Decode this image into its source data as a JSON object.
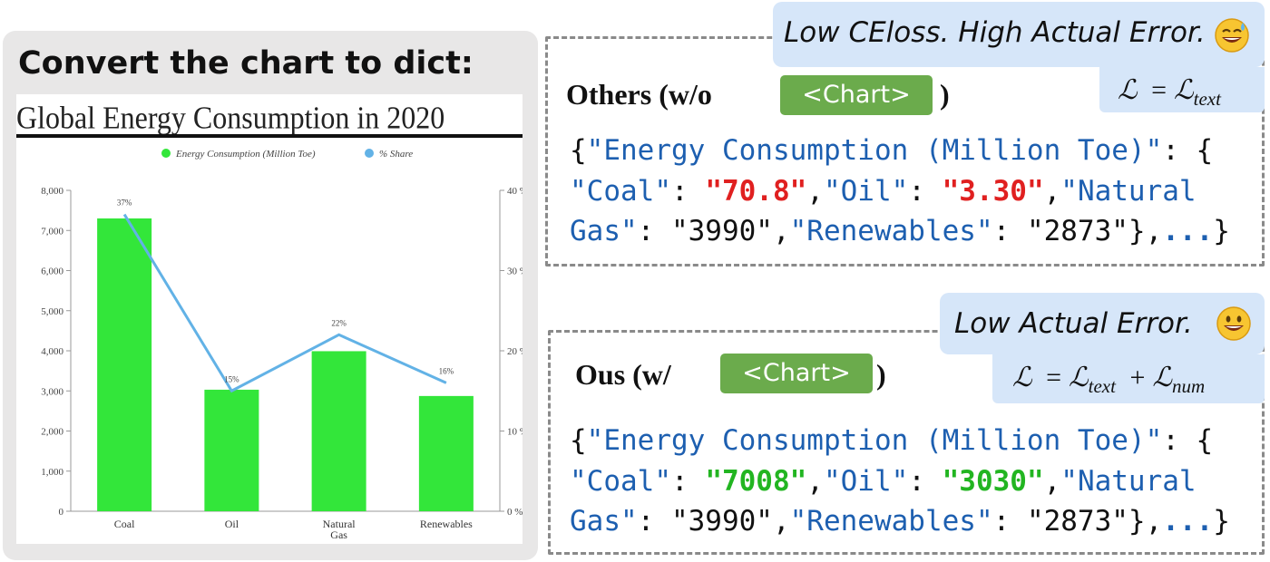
{
  "left": {
    "heading": "Convert the chart to dict:"
  },
  "chart_data": {
    "type": "bar",
    "title": "Global Energy Consumption in 2020",
    "categories": [
      "Coal",
      "Oil",
      "Natural Gas",
      "Renewables"
    ],
    "series": [
      {
        "name": "Energy Consumption (Million Toe)",
        "type": "bar",
        "axis": "left",
        "values": [
          7300,
          3030,
          3990,
          2873
        ],
        "color": "#33e63a"
      },
      {
        "name": "% Share",
        "type": "line",
        "axis": "right",
        "values": [
          37,
          15,
          22,
          16
        ],
        "color": "#62b2e6",
        "labels": [
          "37%",
          "15%",
          "22%",
          "16%"
        ]
      }
    ],
    "y_left": {
      "ylim": [
        0,
        8000
      ],
      "ticks": [
        "0",
        "1,000",
        "2,000",
        "3,000",
        "4,000",
        "5,000",
        "6,000",
        "7,000",
        "8,000"
      ]
    },
    "y_right": {
      "ylim": [
        0,
        40
      ],
      "ticks": [
        "0 %",
        "10 %",
        "20 %",
        "30 %",
        "40 %"
      ]
    },
    "legend": "top",
    "grid": false
  },
  "top": {
    "bubble_text": "Low CEloss. High Actual Error.",
    "emoji": "sweat-smile-emoji",
    "formula": {
      "lhs": "ℒ",
      "eq": "=",
      "rhs": "ℒ",
      "rhs_sub": "text"
    },
    "label_prefix": "Others (w/o",
    "tag": "<Chart>",
    "label_suffix": ")",
    "code": {
      "open": "{",
      "key_main": "\"Energy Consumption (Million Toe)\"",
      "colon_brace": ": {",
      "k_coal": "\"Coal\"",
      "colon": ": ",
      "v_coal": "\"70.8\"",
      "comma": ",",
      "k_oil": "\"Oil\"",
      "v_oil": "\"3.30\"",
      "k_ng1": "\"Natural",
      "k_ng2": "Gas\"",
      "v_ng": "\"3990\"",
      "k_ren": "\"Renewables\"",
      "v_ren": "\"2873\"",
      "close": "},",
      "dots": "...",
      "end": "}"
    }
  },
  "bottom": {
    "bubble_text": "Low Actual Error.",
    "emoji": "grin-emoji",
    "formula": {
      "lhs": "ℒ",
      "eq": "=",
      "t1": "ℒ",
      "t1_sub": "text",
      "plus": "+",
      "t2": "ℒ",
      "t2_sub": "num"
    },
    "label_prefix": "Ous (w/",
    "tag": "<Chart>",
    "label_suffix": ")",
    "code": {
      "open": "{",
      "key_main": "\"Energy Consumption (Million Toe)\"",
      "colon_brace": ": {",
      "k_coal": "\"Coal\"",
      "colon": ": ",
      "v_coal": "\"7008\"",
      "comma": ",",
      "k_oil": "\"Oil\"",
      "v_oil": "\"3030\"",
      "k_ng1": "\"Natural",
      "k_ng2": "Gas\"",
      "v_ng": "\"3990\"",
      "k_ren": "\"Renewables\"",
      "v_ren": "\"2873\"",
      "close": "},",
      "dots": "...",
      "end": "}"
    }
  },
  "colors": {
    "bad": "#e02020",
    "good": "#22b521",
    "key": "#1d5fb0",
    "tag": "#6bab4c",
    "bubble": "#d6e6f9"
  }
}
